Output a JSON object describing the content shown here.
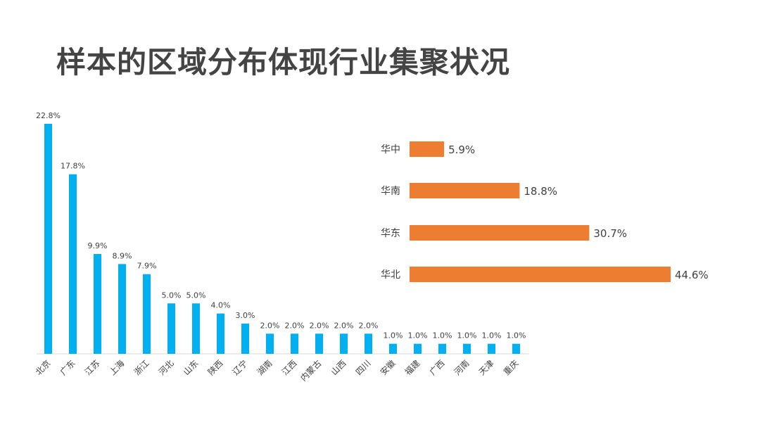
{
  "page": {
    "title": "样本的区域分布体现行业集聚状况"
  },
  "chart_data": [
    {
      "type": "bar",
      "categories": [
        "北京",
        "广东",
        "江苏",
        "上海",
        "浙江",
        "河北",
        "山东",
        "陕西",
        "辽宁",
        "湖南",
        "江西",
        "内蒙古",
        "山西",
        "四川",
        "安徽",
        "福建",
        "广西",
        "河南",
        "天津",
        "重庆"
      ],
      "values": [
        22.8,
        17.8,
        9.9,
        8.9,
        7.9,
        5.0,
        5.0,
        4.0,
        3.0,
        2.0,
        2.0,
        2.0,
        2.0,
        2.0,
        1.0,
        1.0,
        1.0,
        1.0,
        1.0,
        1.0
      ],
      "value_labels": [
        "22.8%",
        "17.8%",
        "9.9%",
        "8.9%",
        "7.9%",
        "5.0%",
        "5.0%",
        "4.0%",
        "3.0%",
        "2.0%",
        "2.0%",
        "2.0%",
        "2.0%",
        "2.0%",
        "1.0%",
        "1.0%",
        "1.0%",
        "1.0%",
        "1.0%",
        "1.0%"
      ],
      "color": "#00b0f0",
      "ylim": [
        0,
        22.8
      ],
      "grid": false,
      "legend": false
    },
    {
      "type": "bar",
      "orientation": "horizontal",
      "categories": [
        "华中",
        "华南",
        "华东",
        "华北"
      ],
      "values": [
        5.9,
        18.8,
        30.7,
        44.6
      ],
      "value_labels": [
        "5.9%",
        "18.8%",
        "30.7%",
        "44.6%"
      ],
      "color": "#ed7d31",
      "xlim": [
        0,
        44.6
      ],
      "grid": false,
      "legend": false
    }
  ]
}
